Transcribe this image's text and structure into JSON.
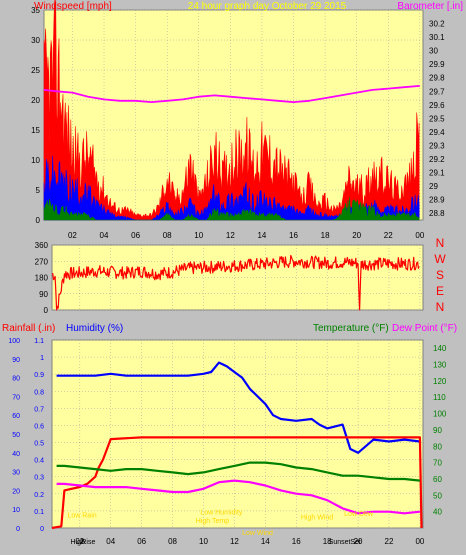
{
  "colors": {
    "background": "#c0c0c0",
    "plot_bg": "#ffffa0",
    "grid": "#a0a0a0",
    "wind_gust": "#ff0000",
    "wind_avg": "#0000ff",
    "wind_low": "#008000",
    "barometer": "#ff00ff",
    "direction": "#ff0000",
    "humidity": "#0000ff",
    "rainfall": "#ff0000",
    "temperature": "#008000",
    "dew_point": "#ff00ff",
    "annotation": "#ffd700"
  },
  "chart_data": [
    {
      "type": "line",
      "title": "24 hour graph day   October 29 2015",
      "ylabel": "Windspeed [mph]",
      "y2label": "Barometer [.in]",
      "x_tick_labels": [
        "02",
        "04",
        "06",
        "08",
        "10",
        "12",
        "14",
        "16",
        "18",
        "20",
        "22",
        "00"
      ],
      "x_hours": [
        2,
        4,
        6,
        8,
        10,
        12,
        14,
        16,
        18,
        20,
        22,
        24
      ],
      "xlim": [
        0.2,
        24.2
      ],
      "ylim": [
        0,
        35
      ],
      "y_ticks": [
        0,
        5,
        10,
        15,
        20,
        25,
        30,
        35
      ],
      "y2lim": [
        28.75,
        30.3
      ],
      "y2_ticks": [
        28.8,
        28.9,
        29,
        29.1,
        29.2,
        29.3,
        29.4,
        29.5,
        29.6,
        29.7,
        29.8,
        29.9,
        30,
        30.1,
        30.2
      ],
      "grid": true,
      "series": [
        {
          "name": "wind gust",
          "axis": "left",
          "x": [
            0.2,
            0.5,
            1,
            1.5,
            2,
            2.5,
            3,
            3.5,
            4,
            4.5,
            5,
            5.5,
            6,
            6.5,
            7,
            7.5,
            8,
            8.5,
            9,
            9.5,
            10,
            10.5,
            11,
            11.5,
            12,
            12.5,
            13,
            13.5,
            14,
            14.5,
            15,
            15.5,
            16,
            16.5,
            17,
            17.5,
            18,
            18.5,
            19,
            19.5,
            20,
            20.5,
            21,
            21.5,
            22,
            22.5,
            23,
            23.5,
            24
          ],
          "values": [
            27,
            28,
            32,
            20,
            14,
            12,
            13,
            9,
            6,
            3,
            2,
            2,
            1,
            1,
            1,
            3,
            9,
            4,
            6,
            12,
            4,
            8,
            14,
            9,
            12,
            13,
            15,
            11,
            14,
            13,
            11,
            9,
            8,
            4,
            7,
            3,
            4,
            2,
            3,
            8,
            7,
            6,
            10,
            9,
            8,
            6,
            7,
            9,
            19
          ]
        },
        {
          "name": "wind average",
          "axis": "left",
          "x": [
            0.2,
            0.5,
            1,
            1.5,
            2,
            2.5,
            3,
            3.5,
            4,
            4.5,
            5,
            5.5,
            6,
            6.5,
            7,
            7.5,
            8,
            8.5,
            9,
            9.5,
            10,
            10.5,
            11,
            11.5,
            12,
            12.5,
            13,
            13.5,
            14,
            14.5,
            15,
            15.5,
            16,
            16.5,
            17,
            17.5,
            18,
            18.5,
            19,
            19.5,
            20,
            20.5,
            21,
            21.5,
            22,
            22.5,
            23,
            23.5,
            24
          ],
          "values": [
            7,
            9,
            8,
            7,
            6,
            5,
            5,
            3,
            2,
            1,
            0.5,
            0.5,
            0,
            0,
            0,
            1,
            3,
            1,
            2,
            3,
            1,
            2,
            5,
            3,
            4,
            4,
            5,
            3,
            4,
            3,
            3,
            2,
            2,
            1,
            2,
            1,
            1,
            0.5,
            1,
            2,
            2,
            2,
            3,
            2,
            2,
            2,
            2,
            3,
            5
          ]
        },
        {
          "name": "wind low",
          "axis": "left",
          "x": [
            0.2,
            0.5,
            1,
            1.5,
            2,
            2.5,
            3,
            3.5,
            4,
            4.5,
            5,
            5.5,
            6,
            6.5,
            7,
            7.5,
            8,
            8.5,
            9,
            9.5,
            10,
            10.5,
            11,
            11.5,
            12,
            12.5,
            13,
            13.5,
            14,
            14.5,
            15,
            15.5,
            16,
            16.5,
            17,
            17.5,
            18,
            18.5,
            19,
            19.5,
            20,
            20.5,
            21,
            21.5,
            22,
            22.5,
            23,
            23.5,
            24
          ],
          "values": [
            2,
            3,
            2,
            2,
            1,
            1,
            1,
            0,
            0,
            0,
            0,
            0,
            0,
            0,
            0,
            0,
            1,
            0,
            0,
            1,
            0,
            0,
            2,
            1,
            1,
            1,
            2,
            1,
            1,
            1,
            1,
            0,
            0,
            0,
            0,
            0,
            0,
            0,
            1,
            3,
            3,
            2,
            2,
            1,
            1,
            1,
            1,
            1,
            1
          ]
        },
        {
          "name": "barometer",
          "axis": "right",
          "x": [
            0.2,
            1,
            2,
            3,
            4,
            5,
            6,
            7,
            8,
            9,
            10,
            11,
            12,
            13,
            14,
            15,
            16,
            17,
            18,
            19,
            20,
            21,
            22,
            23,
            24
          ],
          "values": [
            29.71,
            29.7,
            29.69,
            29.66,
            29.64,
            29.63,
            29.63,
            29.62,
            29.63,
            29.64,
            29.66,
            29.67,
            29.66,
            29.65,
            29.64,
            29.63,
            29.62,
            29.63,
            29.65,
            29.67,
            29.69,
            29.71,
            29.72,
            29.73,
            29.74
          ]
        }
      ]
    },
    {
      "type": "line",
      "ylabel": "",
      "ylim": [
        0,
        360
      ],
      "y_ticks": [
        0,
        90,
        180,
        270,
        360
      ],
      "xlim": [
        0.2,
        24.2
      ],
      "compass_labels": [
        "N",
        "W",
        "S",
        "E",
        "N"
      ],
      "grid": true,
      "series": [
        {
          "name": "wind direction",
          "x": [
            0.2,
            0.4,
            0.5,
            1,
            2,
            3,
            4,
            5,
            6,
            7,
            8,
            9,
            10,
            11,
            12,
            13,
            14,
            15,
            16,
            17,
            18,
            19,
            20,
            20.1,
            20.2,
            21,
            22,
            23,
            24
          ],
          "values": [
            200,
            190,
            0,
            200,
            205,
            215,
            210,
            205,
            215,
            200,
            210,
            230,
            235,
            240,
            245,
            250,
            255,
            265,
            270,
            265,
            260,
            265,
            260,
            0,
            255,
            255,
            258,
            255,
            258
          ]
        }
      ]
    },
    {
      "type": "line",
      "ylabel": "Humidity (%)",
      "y_rain_label": "Rainfall (.in)",
      "y_temp_label": "Temperature (°F)",
      "y_dew_label": "Dew Point (°F)",
      "humidity_lim": [
        0,
        100
      ],
      "humidity_ticks": [
        0,
        10,
        20,
        30,
        40,
        50,
        60,
        70,
        80,
        90,
        100
      ],
      "rain_lim": [
        0,
        1.1
      ],
      "rain_ticks": [
        0,
        0.1,
        0.2,
        0.3,
        0.4,
        0.5,
        0.6,
        0.7,
        0.8,
        0.9,
        1,
        1.1
      ],
      "temp_lim": [
        30,
        145
      ],
      "temp_ticks": [
        40,
        50,
        60,
        70,
        80,
        90,
        100,
        110,
        120,
        130,
        140
      ],
      "xlim": [
        0.2,
        24.2
      ],
      "grid": true,
      "series": [
        {
          "name": "Humidity",
          "axis": "humidity",
          "x": [
            0.5,
            1,
            2,
            3,
            4,
            5,
            6,
            7,
            8,
            9,
            10,
            10.5,
            11,
            11.5,
            12,
            12.5,
            13,
            14,
            14.5,
            15,
            16,
            17,
            17.5,
            18,
            19,
            19.5,
            20,
            21,
            22,
            23,
            24
          ],
          "values": [
            81,
            81,
            81,
            81,
            82,
            81,
            81,
            81,
            81,
            81,
            82,
            83,
            88,
            86,
            83,
            80,
            74,
            66,
            60,
            58,
            57,
            58,
            55,
            53,
            55,
            42,
            40,
            47,
            46,
            47,
            46
          ]
        },
        {
          "name": "Rainfall",
          "axis": "rain",
          "x": [
            0.2,
            0.8,
            1,
            1.5,
            2,
            2.5,
            3,
            3.2,
            3.5,
            4,
            6,
            8,
            10,
            12,
            14,
            16,
            18,
            20,
            22,
            23.5,
            24,
            24.1
          ],
          "values": [
            0,
            0.01,
            0.22,
            0.23,
            0.24,
            0.26,
            0.3,
            0.35,
            0.4,
            0.52,
            0.53,
            0.53,
            0.53,
            0.53,
            0.53,
            0.53,
            0.53,
            0.53,
            0.53,
            0.53,
            0.53,
            0
          ]
        },
        {
          "name": "Temperature",
          "axis": "temp",
          "x": [
            0.5,
            1,
            2,
            3,
            4,
            5,
            6,
            7,
            8,
            9,
            10,
            11,
            12,
            13,
            14,
            15,
            16,
            17,
            18,
            19,
            20,
            21,
            22,
            23,
            24
          ],
          "values": [
            68,
            68,
            67,
            66,
            65,
            66,
            66,
            65,
            64,
            63,
            64,
            66,
            68,
            70,
            70,
            69,
            67,
            66,
            64,
            62,
            62,
            61,
            60,
            60,
            59
          ]
        },
        {
          "name": "Dew Point",
          "axis": "temp",
          "x": [
            0.5,
            1,
            2,
            3,
            4,
            5,
            6,
            7,
            8,
            9,
            10,
            11,
            12,
            13,
            14,
            15,
            16,
            17,
            18,
            19,
            20,
            21,
            22,
            23,
            24
          ],
          "values": [
            57,
            57,
            56,
            55,
            55,
            55,
            54,
            53,
            52,
            52,
            54,
            58,
            59,
            58,
            56,
            53,
            51,
            50,
            47,
            42,
            39,
            40,
            40,
            39,
            40
          ]
        }
      ],
      "annotations": [
        {
          "text": "Low Rain",
          "x": 1.2,
          "y_rain": 0.06
        },
        {
          "text": "Low Humidity",
          "x": 9.8,
          "y_rain": 0.08
        },
        {
          "text": "High Temp",
          "x": 9.5,
          "y_rain": 0.03
        },
        {
          "text": "Low Wind",
          "x": 12.5,
          "y_rain": -0.04
        },
        {
          "text": "High Wind",
          "x": 16.3,
          "y_rain": 0.05
        },
        {
          "text": "Low Dew",
          "x": 19.1,
          "y_rain": 0.07
        }
      ],
      "bottom_labels": [
        {
          "text": "High",
          "x": 1.4
        },
        {
          "text": "Rise",
          "x": 2.1
        },
        {
          "text": "Sunset",
          "x": 18.1
        },
        {
          "text": "Set",
          "x": 19.5
        }
      ]
    }
  ]
}
